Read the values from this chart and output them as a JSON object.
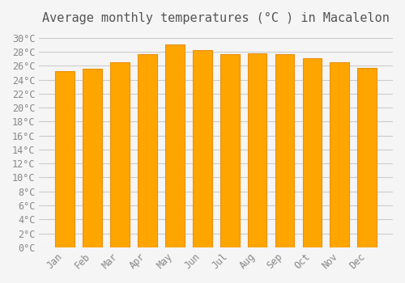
{
  "title": "Average monthly temperatures (°C ) in Macalelon",
  "months": [
    "Jan",
    "Feb",
    "Mar",
    "Apr",
    "May",
    "Jun",
    "Jul",
    "Aug",
    "Sep",
    "Oct",
    "Nov",
    "Dec"
  ],
  "temperatures": [
    25.2,
    25.6,
    26.5,
    27.7,
    29.0,
    28.2,
    27.7,
    27.8,
    27.7,
    27.1,
    26.5,
    25.7
  ],
  "bar_color": "#FFA500",
  "bar_edge_color": "#E8900A",
  "background_color": "#f5f5f5",
  "grid_color": "#cccccc",
  "ylim": [
    0,
    31
  ],
  "yticks": [
    0,
    2,
    4,
    6,
    8,
    10,
    12,
    14,
    16,
    18,
    20,
    22,
    24,
    26,
    28,
    30
  ],
  "title_fontsize": 11,
  "tick_fontsize": 8.5,
  "title_color": "#555555",
  "tick_color": "#888888"
}
